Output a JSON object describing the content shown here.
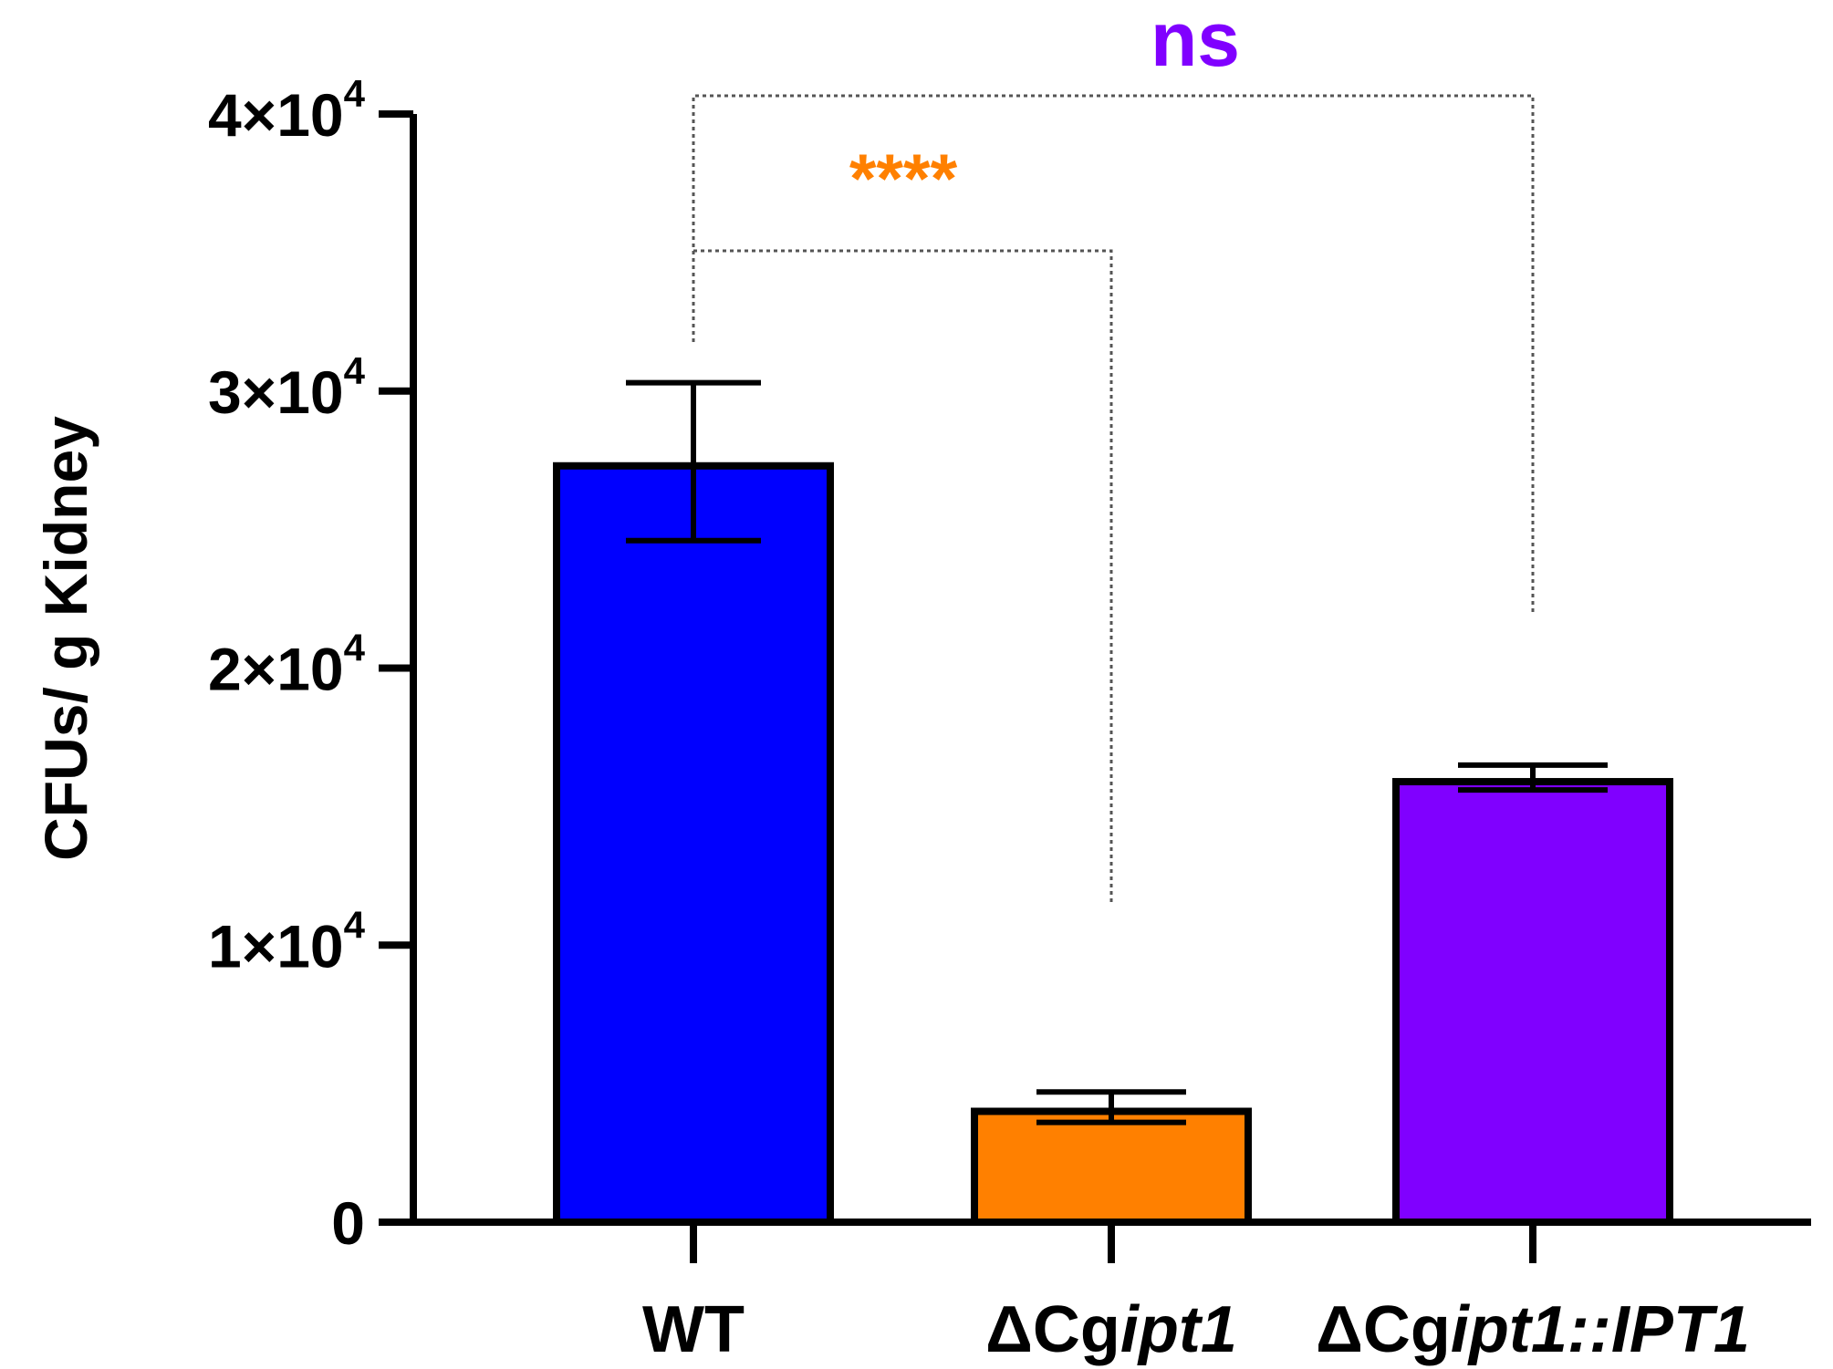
{
  "chart_data": {
    "type": "bar",
    "title": "",
    "xlabel": "",
    "ylabel": "CFUs/ g Kidney",
    "ylim": [
      0,
      40000
    ],
    "yticks": [
      {
        "value": 0,
        "label": "0",
        "mantissa": "",
        "exponent": ""
      },
      {
        "value": 10000,
        "label": "1×10⁴",
        "mantissa": "1×10",
        "exponent": "4"
      },
      {
        "value": 20000,
        "label": "2×10⁴",
        "mantissa": "2×10",
        "exponent": "4"
      },
      {
        "value": 30000,
        "label": "3×10⁴",
        "mantissa": "3×10",
        "exponent": "4"
      },
      {
        "value": 40000,
        "label": "4×10⁴",
        "mantissa": "4×10",
        "exponent": "4"
      }
    ],
    "categories": [
      {
        "id": "wt",
        "label": "WT",
        "label_prefix": "WT",
        "label_italic": "",
        "label_suffix": ""
      },
      {
        "id": "cgipt1",
        "label": "ΔCgipt1",
        "label_prefix": "ΔCg",
        "label_italic": "ipt1",
        "label_suffix": ""
      },
      {
        "id": "cgipt1-ipt1",
        "label": "ΔCgipt1::IPT1",
        "label_prefix": "ΔCg",
        "label_italic": "ipt1::IPT1",
        "label_suffix": ""
      }
    ],
    "values": [
      27300,
      4000,
      15900
    ],
    "error": [
      {
        "upper": 30300,
        "lower": 24600
      },
      {
        "upper": 4700,
        "lower": 3600
      },
      {
        "upper": 16500,
        "lower": 15600
      }
    ],
    "colors": [
      "#0000ff",
      "#ff8000",
      "#8000ff"
    ],
    "grid": false,
    "comparisons": [
      {
        "from": 0,
        "to": 1,
        "label": "****",
        "color": "#ff8000",
        "level": 1
      },
      {
        "from": 0,
        "to": 2,
        "label": "ns",
        "color": "#8000ff",
        "level": 2
      }
    ]
  }
}
